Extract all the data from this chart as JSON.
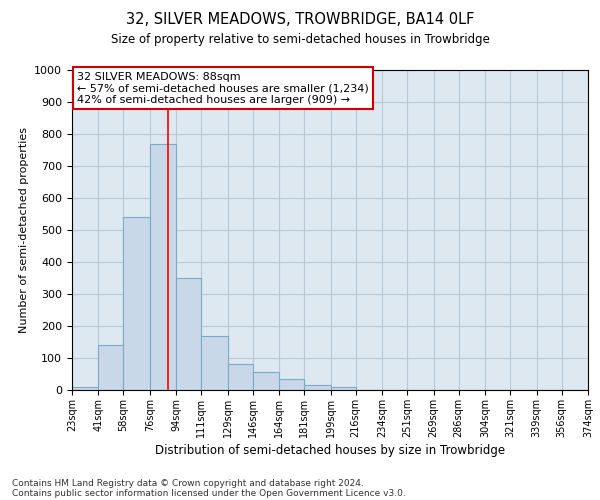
{
  "title": "32, SILVER MEADOWS, TROWBRIDGE, BA14 0LF",
  "subtitle": "Size of property relative to semi-detached houses in Trowbridge",
  "xlabel": "Distribution of semi-detached houses by size in Trowbridge",
  "ylabel": "Number of semi-detached properties",
  "footnote1": "Contains HM Land Registry data © Crown copyright and database right 2024.",
  "footnote2": "Contains public sector information licensed under the Open Government Licence v3.0.",
  "bar_color": "#c8d8e8",
  "bar_edgecolor": "#7aaac8",
  "bar_linewidth": 0.8,
  "grid_color": "#b8c8d8",
  "background_color": "#dde8f0",
  "red_line_x": 88,
  "annotation_line1": "32 SILVER MEADOWS: 88sqm",
  "annotation_line2": "← 57% of semi-detached houses are smaller (1,234)",
  "annotation_line3": "42% of semi-detached houses are larger (909) →",
  "annotation_box_edgecolor": "#cc0000",
  "annotation_box_facecolor": "white",
  "ylim": [
    0,
    1000
  ],
  "yticks": [
    0,
    100,
    200,
    300,
    400,
    500,
    600,
    700,
    800,
    900,
    1000
  ],
  "bin_edges": [
    23,
    41,
    58,
    76,
    94,
    111,
    129,
    146,
    164,
    181,
    199,
    216,
    234,
    251,
    269,
    286,
    304,
    321,
    339,
    356,
    374
  ],
  "bar_heights": [
    8,
    140,
    540,
    770,
    350,
    170,
    80,
    55,
    35,
    15,
    8,
    0,
    0,
    0,
    0,
    0,
    0,
    0,
    0,
    0
  ],
  "tick_labels": [
    "23sqm",
    "41sqm",
    "58sqm",
    "76sqm",
    "94sqm",
    "111sqm",
    "129sqm",
    "146sqm",
    "164sqm",
    "181sqm",
    "199sqm",
    "216sqm",
    "234sqm",
    "251sqm",
    "269sqm",
    "286sqm",
    "304sqm",
    "321sqm",
    "339sqm",
    "356sqm",
    "374sqm"
  ]
}
